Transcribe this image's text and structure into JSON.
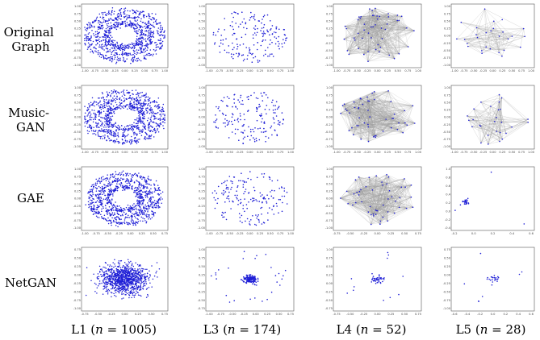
{
  "figure": {
    "rows": [
      {
        "label_lines": [
          "Original",
          "Graph"
        ]
      },
      {
        "label_lines": [
          "Music-",
          "GAN"
        ]
      },
      {
        "label_lines": [
          "GAE"
        ]
      },
      {
        "label_lines": [
          "NetGAN"
        ]
      }
    ],
    "columns": [
      {
        "name": "L1",
        "n_label": "n",
        "eq": " = ",
        "n_value": "1005",
        "prefix": "L1 (",
        "suffix": ")"
      },
      {
        "name": "L3",
        "n_label": "n",
        "eq": " = ",
        "n_value": "174",
        "prefix": "L3 (",
        "suffix": ")"
      },
      {
        "name": "L4",
        "n_label": "n",
        "eq": " = ",
        "n_value": "52",
        "prefix": "L4 (",
        "suffix": ")"
      },
      {
        "name": "L5",
        "n_label": "n",
        "eq": " = ",
        "n_value": "28",
        "prefix": "L5 (",
        "suffix": ")"
      }
    ],
    "colors": {
      "point": "#1f1fd6",
      "edge": "#9a9a9a",
      "frame": "#555555"
    },
    "panels": [
      [
        {
          "style": "ring_clusters",
          "nodes": 1005,
          "xticks": [
            "-1.00",
            "-0.75",
            "-0.50",
            "-0.25",
            "0.00",
            "0.25",
            "0.50",
            "0.75",
            "1.00"
          ],
          "yticks": [
            "1.00",
            "0.75",
            "0.50",
            "0.25",
            "0.00",
            "-0.25",
            "-0.50",
            "-0.75",
            "-1.00"
          ]
        },
        {
          "style": "uniform_disk",
          "nodes": 174,
          "xticks": [
            "-1.00",
            "-0.75",
            "-0.50",
            "-0.25",
            "0.00",
            "0.25",
            "0.50",
            "0.75",
            "1.00"
          ],
          "yticks": [
            "1.00",
            "0.75",
            "0.50",
            "0.25",
            "0.00",
            "-0.25",
            "-0.50",
            "-0.75",
            "-1.00"
          ]
        },
        {
          "style": "dense_graph",
          "nodes": 52,
          "xticks": [
            "-1.00",
            "-0.75",
            "-0.50",
            "-0.25",
            "0.00",
            "0.25",
            "0.50",
            "0.75",
            "1.00"
          ],
          "yticks": [
            "1.00",
            "0.75",
            "0.50",
            "0.25",
            "0.00",
            "-0.25",
            "-0.50",
            "-0.75",
            "-1.00"
          ]
        },
        {
          "style": "sparse_graph",
          "nodes": 28,
          "xticks": [
            "-1.00",
            "-0.75",
            "-0.50",
            "-0.25",
            "0.00",
            "0.25",
            "0.50",
            "0.75",
            "1.00"
          ],
          "yticks": [
            "1.00",
            "0.75",
            "0.50",
            "0.25",
            "0.00",
            "-0.25",
            "-0.50",
            "-0.75",
            "-1.00"
          ]
        }
      ],
      [
        {
          "style": "ring_clusters",
          "nodes": 1005,
          "xticks": [
            "-1.00",
            "-0.75",
            "-0.50",
            "-0.25",
            "0.00",
            "0.25",
            "0.50",
            "0.75",
            "1.00"
          ],
          "yticks": [
            "1.00",
            "0.75",
            "0.50",
            "0.25",
            "0.00",
            "-0.25",
            "-0.50",
            "-0.75",
            "-1.00"
          ]
        },
        {
          "style": "uniform_disk",
          "nodes": 174,
          "xticks": [
            "-1.00",
            "-0.75",
            "-0.50",
            "-0.25",
            "0.00",
            "0.25",
            "0.50",
            "0.75",
            "1.00"
          ],
          "yticks": [
            "1.00",
            "0.75",
            "0.50",
            "0.25",
            "0.00",
            "-0.25",
            "-0.50",
            "-0.75",
            "-1.00"
          ]
        },
        {
          "style": "dense_graph",
          "nodes": 52,
          "xticks": [
            "-1.00",
            "-0.75",
            "-0.50",
            "-0.25",
            "0.00",
            "0.25",
            "0.50",
            "0.75",
            "1.00"
          ],
          "yticks": [
            "1.00",
            "0.75",
            "0.50",
            "0.25",
            "0.00",
            "-0.25",
            "-0.50",
            "-0.75",
            "-1.00"
          ]
        },
        {
          "style": "sparse_graph",
          "nodes": 28,
          "xticks": [
            "-1.00",
            "-0.75",
            "-0.50",
            "-0.25",
            "0.00",
            "0.25",
            "0.50",
            "0.75",
            "1.00"
          ],
          "yticks": [
            "1.00",
            "0.75",
            "0.50",
            "0.25",
            "0.00",
            "-0.25",
            "-0.50",
            "-0.75",
            "-1.00"
          ]
        }
      ],
      [
        {
          "style": "ring_clusters_gae",
          "nodes": 1005,
          "xticks": [
            "-1.00",
            "-0.75",
            "-0.50",
            "-0.25",
            "0.00",
            "0.25",
            "0.50",
            "0.75"
          ],
          "yticks": [
            "1.00",
            "0.75",
            "0.50",
            "0.25",
            "0.00",
            "-0.25",
            "-0.50",
            "-0.75",
            "-1.00"
          ]
        },
        {
          "style": "uniform_disk",
          "nodes": 174,
          "xticks": [
            "-1.00",
            "-0.75",
            "-0.50",
            "-0.25",
            "0.00",
            "0.25",
            "0.50",
            "0.75",
            "1.00"
          ],
          "yticks": [
            "1.00",
            "0.75",
            "0.50",
            "0.25",
            "0.00",
            "-0.25",
            "-0.50",
            "-0.75",
            "-1.00"
          ]
        },
        {
          "style": "dense_graph_gae",
          "nodes": 52,
          "xticks": [
            "-0.75",
            "-0.50",
            "-0.25",
            "0.00",
            "0.25",
            "0.50",
            "0.75"
          ],
          "yticks": [
            "1.00",
            "0.75",
            "0.50",
            "0.25",
            "0.00",
            "-0.25",
            "-0.50",
            "-0.75",
            "-1.00"
          ]
        },
        {
          "style": "collapsed_left",
          "nodes": 28,
          "xticks": [
            "-0.2",
            "0.0",
            "0.2",
            "0.4",
            "0.6"
          ],
          "yticks": [
            "1.0",
            "0.8",
            "0.6",
            "0.4",
            "0.2",
            "0.0",
            "-0.2",
            "-0.4"
          ]
        }
      ],
      [
        {
          "style": "gaussian_blob",
          "nodes": 1005,
          "xticks": [
            "-0.75",
            "-0.50",
            "-0.25",
            "0.00",
            "0.25",
            "0.50",
            "0.75"
          ],
          "yticks": [
            "0.75",
            "0.50",
            "0.25",
            "0.00",
            "-0.25",
            "-0.50",
            "-0.75",
            "-1.00"
          ]
        },
        {
          "style": "center_cluster",
          "nodes": 174,
          "xticks": [
            "-1.00",
            "-0.75",
            "-0.50",
            "-0.25",
            "0.00",
            "0.25",
            "0.50",
            "0.75"
          ],
          "yticks": [
            "1.00",
            "0.75",
            "0.50",
            "0.25",
            "0.00",
            "-0.25",
            "-0.50",
            "-0.75"
          ]
        },
        {
          "style": "center_cluster_small",
          "nodes": 52,
          "xticks": [
            "-0.75",
            "-0.50",
            "-0.25",
            "0.00",
            "0.25",
            "0.50",
            "0.75"
          ],
          "yticks": [
            "1.00",
            "0.75",
            "0.50",
            "0.25",
            "0.00",
            "-0.25",
            "-0.50",
            "-0.75"
          ]
        },
        {
          "style": "center_cluster_tiny",
          "nodes": 28,
          "xticks": [
            "-0.6",
            "-0.4",
            "-0.2",
            "0.0",
            "0.2",
            "0.4",
            "0.6"
          ],
          "yticks": [
            "0.75",
            "0.50",
            "0.25",
            "0.00",
            "-0.25",
            "-0.50",
            "-0.75",
            "-1.00"
          ]
        }
      ]
    ]
  }
}
